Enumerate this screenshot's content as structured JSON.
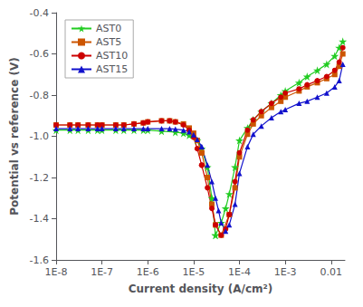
{
  "chart_data": {
    "type": "line",
    "xlabel": "Current density (A/cm²)",
    "ylabel": "Potential vs reference (V)",
    "log": "x",
    "grid": false,
    "legend": "upper left",
    "xlim": [
      1e-08,
      0.02
    ],
    "xticks": [
      {
        "value": 1e-08,
        "label": "1E-8"
      },
      {
        "value": 1e-07,
        "label": "1E-7"
      },
      {
        "value": 1e-06,
        "label": "1E-6"
      },
      {
        "value": 1e-05,
        "label": "1E-5"
      },
      {
        "value": 0.0001,
        "label": "1E-4"
      },
      {
        "value": 0.001,
        "label": "1E-3"
      },
      0.01
    ],
    "ylim": [
      -1.6,
      -0.4
    ],
    "yticks": [
      -1.6,
      -1.4,
      -1.2,
      {
        "value": -1.0,
        "label": "-1.0"
      },
      -0.8,
      -0.6,
      -0.4
    ],
    "series": [
      {
        "name": "AST0",
        "color": "#22cc22",
        "marker": "star",
        "x": [
          1e-08,
          2e-08,
          3e-08,
          5e-08,
          8e-08,
          1e-07,
          2e-07,
          3e-07,
          5e-07,
          8e-07,
          1e-06,
          2e-06,
          4e-06,
          6e-06,
          8e-06,
          1.2e-05,
          1.5e-05,
          2e-05,
          2.5e-05,
          3e-05,
          3e-05,
          4e-05,
          5e-05,
          6e-05,
          8e-05,
          0.0001,
          0.00015,
          0.0002,
          0.0003,
          0.0005,
          0.0008,
          0.001,
          0.002,
          0.003,
          0.005,
          0.008,
          0.012,
          0.015,
          0.018
        ],
        "values": [
          -0.97,
          -0.97,
          -0.97,
          -0.97,
          -0.97,
          -0.97,
          -0.97,
          -0.97,
          -0.97,
          -0.97,
          -0.97,
          -0.975,
          -0.98,
          -0.985,
          -0.995,
          -1.02,
          -1.06,
          -1.15,
          -1.3,
          -1.48,
          -1.48,
          -1.42,
          -1.35,
          -1.28,
          -1.15,
          -1.02,
          -0.96,
          -0.92,
          -0.88,
          -0.84,
          -0.8,
          -0.78,
          -0.74,
          -0.71,
          -0.68,
          -0.65,
          -0.61,
          -0.57,
          -0.54
        ]
      },
      {
        "name": "AST5",
        "color": "#cc5500",
        "marker": "square",
        "x": [
          1e-08,
          2e-08,
          3e-08,
          5e-08,
          8e-08,
          1e-07,
          2e-07,
          3e-07,
          5e-07,
          8e-07,
          1e-06,
          2e-06,
          3e-06,
          4e-06,
          6e-06,
          8e-06,
          1e-05,
          1.2e-05,
          1.5e-05,
          1.5e-05,
          2e-05,
          2.5e-05,
          3e-05,
          4e-05,
          6e-05,
          8e-05,
          0.0001,
          0.00015,
          0.0002,
          0.0003,
          0.0005,
          0.0008,
          0.001,
          0.002,
          0.003,
          0.005,
          0.008,
          0.012,
          0.015,
          0.018
        ],
        "values": [
          -0.945,
          -0.945,
          -0.945,
          -0.945,
          -0.945,
          -0.945,
          -0.945,
          -0.945,
          -0.94,
          -0.935,
          -0.93,
          -0.925,
          -0.925,
          -0.93,
          -0.94,
          -0.96,
          -0.985,
          -1.02,
          -1.08,
          -1.08,
          -1.2,
          -1.33,
          -1.43,
          -1.48,
          -1.38,
          -1.25,
          -1.1,
          -0.99,
          -0.94,
          -0.9,
          -0.86,
          -0.83,
          -0.81,
          -0.78,
          -0.76,
          -0.74,
          -0.72,
          -0.7,
          -0.66,
          -0.6
        ]
      },
      {
        "name": "AST10",
        "color": "#cc0000",
        "marker": "circle",
        "x": [
          1e-08,
          2e-08,
          3e-08,
          5e-08,
          8e-08,
          1e-07,
          2e-07,
          3e-07,
          5e-07,
          8e-07,
          1e-06,
          2e-06,
          3e-06,
          4e-06,
          6e-06,
          8e-06,
          1e-05,
          1.2e-05,
          1.5e-05,
          1.5e-05,
          2e-05,
          2.5e-05,
          3e-05,
          4e-05,
          5e-05,
          6e-05,
          8e-05,
          0.0001,
          0.00015,
          0.0002,
          0.0003,
          0.0005,
          0.0008,
          0.001,
          0.002,
          0.003,
          0.005,
          0.008,
          0.012,
          0.015,
          0.018
        ],
        "values": [
          -0.945,
          -0.945,
          -0.945,
          -0.945,
          -0.945,
          -0.945,
          -0.945,
          -0.945,
          -0.94,
          -0.935,
          -0.93,
          -0.925,
          -0.925,
          -0.93,
          -0.945,
          -0.97,
          -1.005,
          -1.06,
          -1.14,
          -1.14,
          -1.25,
          -1.35,
          -1.43,
          -1.48,
          -1.45,
          -1.38,
          -1.22,
          -1.08,
          -0.97,
          -0.92,
          -0.88,
          -0.84,
          -0.81,
          -0.79,
          -0.77,
          -0.75,
          -0.73,
          -0.71,
          -0.68,
          -0.64,
          -0.57
        ]
      },
      {
        "name": "AST15",
        "color": "#1111cc",
        "marker": "triangle",
        "x": [
          1e-08,
          2e-08,
          3e-08,
          5e-08,
          8e-08,
          1e-07,
          2e-07,
          3e-07,
          5e-07,
          8e-07,
          1e-06,
          2e-06,
          3e-06,
          4e-06,
          6e-06,
          8e-06,
          1e-05,
          1.2e-05,
          1.5e-05,
          1.5e-05,
          2e-05,
          2.5e-05,
          3e-05,
          3.5e-05,
          4e-05,
          5e-05,
          6e-05,
          8e-05,
          0.0001,
          0.00015,
          0.0002,
          0.0003,
          0.0005,
          0.0008,
          0.001,
          0.002,
          0.003,
          0.005,
          0.008,
          0.012,
          0.015,
          0.018
        ],
        "values": [
          -0.963,
          -0.963,
          -0.963,
          -0.963,
          -0.963,
          -0.963,
          -0.963,
          -0.963,
          -0.963,
          -0.963,
          -0.963,
          -0.963,
          -0.963,
          -0.965,
          -0.97,
          -0.978,
          -0.992,
          -1.015,
          -1.05,
          -1.05,
          -1.14,
          -1.22,
          -1.3,
          -1.36,
          -1.42,
          -1.46,
          -1.43,
          -1.33,
          -1.18,
          -1.05,
          -0.99,
          -0.95,
          -0.91,
          -0.88,
          -0.87,
          -0.84,
          -0.83,
          -0.81,
          -0.79,
          -0.76,
          -0.73,
          -0.65
        ]
      }
    ]
  }
}
